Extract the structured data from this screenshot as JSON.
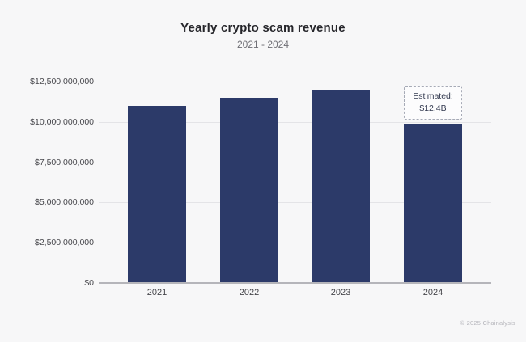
{
  "header": {
    "title": "Yearly crypto scam revenue",
    "subtitle": "2021 - 2024"
  },
  "footer": {
    "attribution": "© 2025 Chainalysis"
  },
  "colors": {
    "background": "#f7f7f8",
    "bar": "#2c3a69",
    "gridline": "#e4e4e7",
    "axis_line": "#b5b5ba",
    "title": "#26262b",
    "subtitle": "#6f6f75",
    "tick_label": "#47474c",
    "annotation_border": "#a6aab6",
    "annotation_bg": "#fcfcfd",
    "annotation_text": "#333a50",
    "attribution": "#b6b6bc"
  },
  "chart_data": {
    "type": "bar",
    "title": "Yearly crypto scam revenue",
    "subtitle": "2021 - 2024",
    "categories": [
      "2021",
      "2022",
      "2023",
      "2024"
    ],
    "values": [
      11000000000,
      11500000000,
      12000000000,
      9900000000
    ],
    "xlabel": "",
    "ylabel": "",
    "ylim": [
      0,
      12500000000
    ],
    "yticks": [
      {
        "value": 0,
        "label": "$0"
      },
      {
        "value": 2500000000,
        "label": "$2,500,000,000"
      },
      {
        "value": 5000000000,
        "label": "$5,000,000,000"
      },
      {
        "value": 7500000000,
        "label": "$7,500,000,000"
      },
      {
        "value": 10000000000,
        "label": "$10,000,000,000"
      },
      {
        "value": 12500000000,
        "label": "$12,500,000,000"
      }
    ],
    "grid": true,
    "legend": false,
    "annotation": {
      "target_category": "2024",
      "lines": [
        "Estimated:",
        "$12.4B"
      ]
    }
  }
}
